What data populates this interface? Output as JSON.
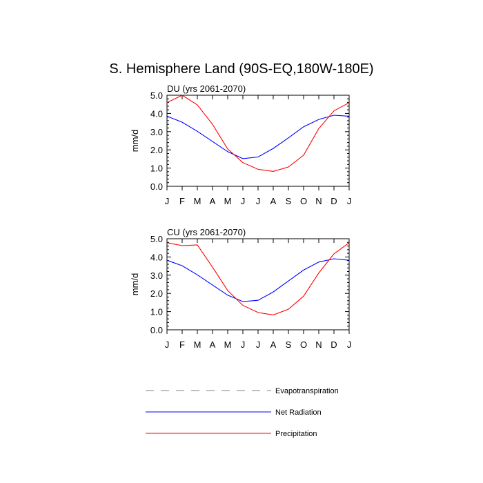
{
  "title": "S. Hemisphere Land (90S-EQ,180W-180E)",
  "chart_data": [
    {
      "type": "line",
      "title": "DU (yrs 2061-2070)",
      "ylabel": "mm/d",
      "ylim": [
        0,
        5
      ],
      "yticks": [
        "0.0",
        "1.0",
        "2.0",
        "3.0",
        "4.0",
        "5.0"
      ],
      "categories": [
        "J",
        "F",
        "M",
        "A",
        "M",
        "J",
        "J",
        "A",
        "S",
        "O",
        "N",
        "D",
        "J"
      ],
      "series": [
        {
          "name": "Net Radiation",
          "color": "#0000ff",
          "values": [
            3.85,
            3.52,
            3.02,
            2.46,
            1.9,
            1.52,
            1.61,
            2.08,
            2.66,
            3.27,
            3.67,
            3.9,
            3.85
          ]
        },
        {
          "name": "Precipitation",
          "color": "#ff0000",
          "values": [
            4.59,
            5.0,
            4.47,
            3.4,
            2.05,
            1.3,
            0.93,
            0.82,
            1.06,
            1.71,
            3.17,
            4.14,
            4.59
          ]
        }
      ]
    },
    {
      "type": "line",
      "title": "CU (yrs 2061-2070)",
      "ylabel": "mm/d",
      "ylim": [
        0,
        5
      ],
      "yticks": [
        "0.0",
        "1.0",
        "2.0",
        "3.0",
        "4.0",
        "5.0"
      ],
      "categories": [
        "J",
        "F",
        "M",
        "A",
        "M",
        "J",
        "J",
        "A",
        "S",
        "O",
        "N",
        "D",
        "J"
      ],
      "series": [
        {
          "name": "Net Radiation",
          "color": "#0000ff",
          "values": [
            3.82,
            3.52,
            3.02,
            2.46,
            1.9,
            1.55,
            1.62,
            2.08,
            2.68,
            3.28,
            3.72,
            3.9,
            3.82
          ]
        },
        {
          "name": "Precipitation",
          "color": "#ff0000",
          "values": [
            4.78,
            4.62,
            4.66,
            3.44,
            2.16,
            1.34,
            0.95,
            0.82,
            1.13,
            1.85,
            3.12,
            4.17,
            4.78
          ]
        }
      ]
    }
  ],
  "legend": [
    {
      "label": "Evapotranspiration",
      "color": "#999999",
      "dash": true
    },
    {
      "label": "Net Radiation",
      "color": "#0000ff",
      "dash": false
    },
    {
      "label": "Precipitation",
      "color": "#ff0000",
      "dash": false
    }
  ]
}
